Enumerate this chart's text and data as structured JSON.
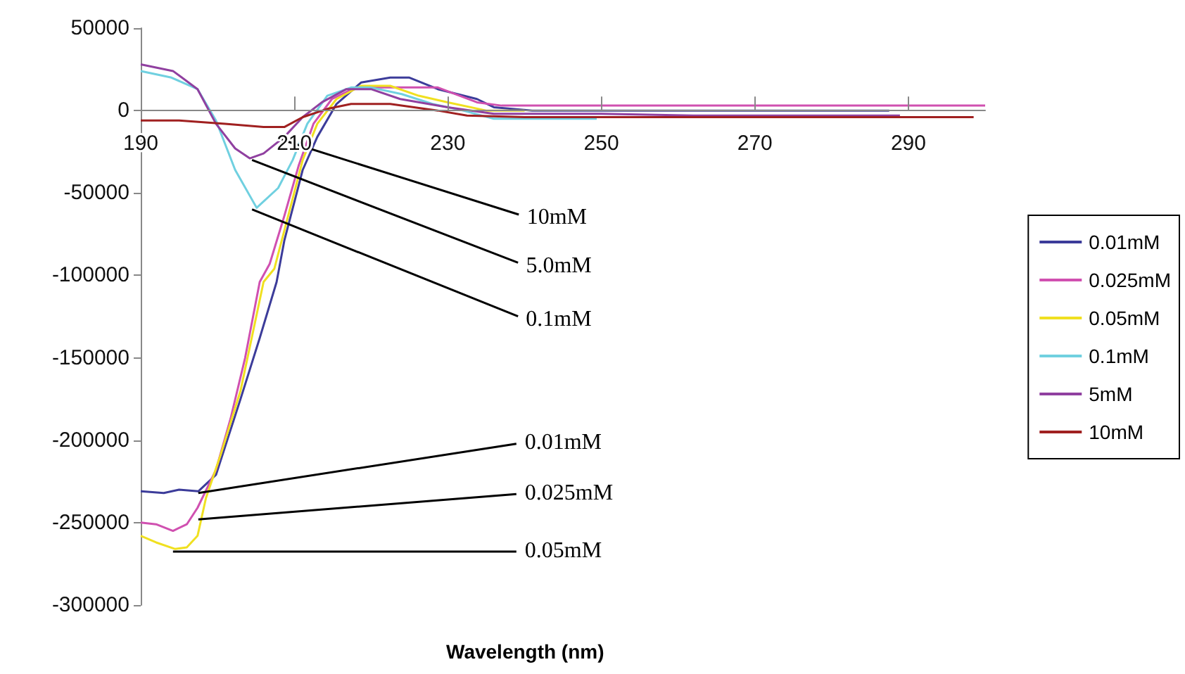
{
  "chart_data": {
    "type": "line",
    "xlabel": "Wavelength (nm)",
    "xlim": [
      190,
      300
    ],
    "ylim": [
      -300000,
      50000
    ],
    "xticks": [
      190,
      210,
      230,
      250,
      270,
      290
    ],
    "yticks": [
      -300000,
      -250000,
      -200000,
      -150000,
      -100000,
      -50000,
      0,
      50000
    ],
    "grid": false,
    "legend": "right",
    "marker": "none",
    "line_style": "solid",
    "series": [
      {
        "name": "0.01mM",
        "color": "#3c3c9a",
        "x": [
          190,
          193,
          195,
          197.5,
          199.8,
          203,
          205.5,
          207.7,
          208.7,
          211.1,
          213,
          215.5,
          218.7,
          222.5,
          225,
          228.7,
          233.8,
          236,
          241,
          250,
          260,
          270,
          280,
          287.5
        ],
        "values": [
          -231000,
          -232000,
          -230000,
          -231000,
          -221000,
          -175000,
          -138000,
          -104000,
          -79000,
          -36000,
          -16000,
          4000,
          17000,
          20000,
          20000,
          13000,
          7000,
          2000,
          0,
          0,
          0,
          0,
          0,
          0
        ]
      },
      {
        "name": "0.025mM",
        "color": "#d050b0",
        "x": [
          190,
          192,
          194.2,
          196,
          197.4,
          199.8,
          201.7,
          203.6,
          205.5,
          206.8,
          208.7,
          210.6,
          212.5,
          214.9,
          218,
          222,
          225,
          228.7,
          233.8,
          237,
          245,
          260,
          280,
          300
        ],
        "values": [
          -250000,
          -251000,
          -255000,
          -251000,
          -241000,
          -218000,
          -187000,
          -150000,
          -104000,
          -93000,
          -64000,
          -33000,
          -8000,
          7000,
          14000,
          14000,
          14000,
          14000,
          5000,
          3000,
          3000,
          3000,
          3000,
          3000
        ]
      },
      {
        "name": "0.05mM",
        "color": "#f0e020",
        "x": [
          190,
          192,
          194.5,
          196,
          197.4,
          198.5,
          200.4,
          203,
          206,
          207.4,
          209.2,
          211.1,
          213,
          215.5,
          218.7,
          222.5,
          226.2,
          230,
          235,
          240
        ],
        "values": [
          -258000,
          -262000,
          -266000,
          -265000,
          -258000,
          -235000,
          -209000,
          -170000,
          -104000,
          -96000,
          -64000,
          -30000,
          -8000,
          7000,
          15000,
          15000,
          9000,
          5000,
          0,
          0
        ]
      },
      {
        "name": "0.1mM",
        "color": "#70d0e0",
        "x": [
          190,
          194,
          197.4,
          199.8,
          202.3,
          205.1,
          207.9,
          209.8,
          211.7,
          214.3,
          217.4,
          220,
          224,
          228,
          232,
          236,
          245,
          249.4
        ],
        "values": [
          24000,
          20000,
          13000,
          -6000,
          -36000,
          -59000,
          -47000,
          -30000,
          -8000,
          9000,
          14000,
          14000,
          10000,
          4000,
          0,
          -5000,
          -5000,
          -5000
        ]
      },
      {
        "name": "5mM",
        "color": "#9040a0",
        "x": [
          190,
          194.2,
          197.4,
          199.8,
          202.3,
          204.2,
          206,
          208.7,
          211.1,
          213.6,
          216.8,
          220,
          223.8,
          230,
          236,
          250,
          262,
          275,
          288.9
        ],
        "values": [
          28000,
          24000,
          13000,
          -8000,
          -23000,
          -29000,
          -26000,
          -16000,
          -4000,
          5000,
          13000,
          13000,
          7000,
          2000,
          -2000,
          -2000,
          -3000,
          -3000,
          -3000
        ]
      },
      {
        "name": "10mM",
        "color": "#a02020",
        "x": [
          190,
          195,
          201,
          206,
          208.7,
          211.1,
          214.3,
          217.4,
          222.5,
          228.7,
          232.5,
          240,
          260,
          280,
          298.5
        ],
        "values": [
          -6000,
          -6000,
          -8000,
          -10000,
          -10000,
          -4000,
          1000,
          4000,
          4000,
          0,
          -3000,
          -4000,
          -4000,
          -4000,
          -4000
        ]
      }
    ],
    "annotations": [
      {
        "text": "10mM",
        "x": 207.9,
        "y": -17000
      },
      {
        "text": "5.0mM",
        "x": 204.5,
        "y": -30000
      },
      {
        "text": "0.1mM",
        "x": 204.5,
        "y": -60000
      },
      {
        "text": "0.01mM",
        "x": 197.5,
        "y": -232000
      },
      {
        "text": "0.025mM",
        "x": 197.5,
        "y": -248000
      },
      {
        "text": "0.05mM",
        "x": 194.2,
        "y": -267000
      }
    ]
  }
}
